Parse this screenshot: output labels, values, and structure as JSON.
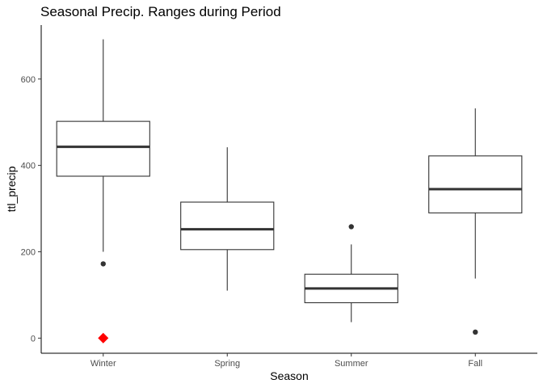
{
  "chart_data": {
    "type": "box",
    "title": "Seasonal Precip. Ranges during Period",
    "xlabel": "Season",
    "ylabel": "ttl_precip",
    "ylim": [
      -35,
      725
    ],
    "yticks": [
      0,
      200,
      400,
      600
    ],
    "grid": false,
    "categories": [
      "Winter",
      "Spring",
      "Summer",
      "Fall"
    ],
    "boxes": [
      {
        "category": "Winter",
        "whisker_low": 200,
        "q1": 375,
        "median": 443,
        "q3": 502,
        "whisker_high": 692,
        "outliers": [
          172
        ]
      },
      {
        "category": "Spring",
        "whisker_low": 110,
        "q1": 205,
        "median": 252,
        "q3": 315,
        "whisker_high": 442,
        "outliers": []
      },
      {
        "category": "Summer",
        "whisker_low": 37,
        "q1": 82,
        "median": 115,
        "q3": 148,
        "whisker_high": 217,
        "outliers": [
          258
        ]
      },
      {
        "category": "Fall",
        "whisker_low": 138,
        "q1": 290,
        "median": 345,
        "q3": 422,
        "whisker_high": 532,
        "outliers": [
          14
        ]
      }
    ],
    "highlight_points": [
      {
        "category": "Winter",
        "value": 0,
        "shape": "diamond",
        "color": "#ff0000"
      }
    ],
    "colors": {
      "box_outline": "#333333",
      "highlight": "#ff0000"
    }
  }
}
